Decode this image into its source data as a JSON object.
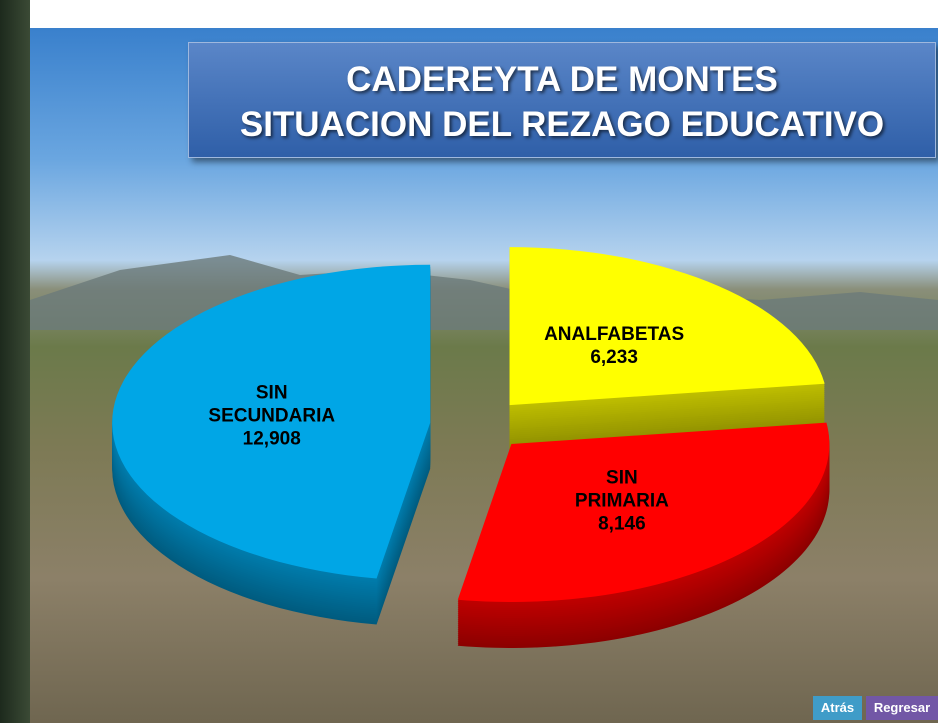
{
  "chart_data": {
    "type": "pie",
    "title": "CADEREYTA DE MONTES",
    "subtitle": "SITUACION DEL REZAGO EDUCATIVO",
    "categories": [
      "ANALFABETAS",
      "SIN PRIMARIA",
      "SIN SECUNDARIA"
    ],
    "values": [
      6233,
      8146,
      12908
    ],
    "value_labels": [
      "6,233",
      "8,146",
      "12,908"
    ],
    "colors": [
      "#ffff00",
      "#ff0000",
      "#00a6e6"
    ]
  },
  "buttons": [
    "Atrás",
    "Regresar"
  ]
}
